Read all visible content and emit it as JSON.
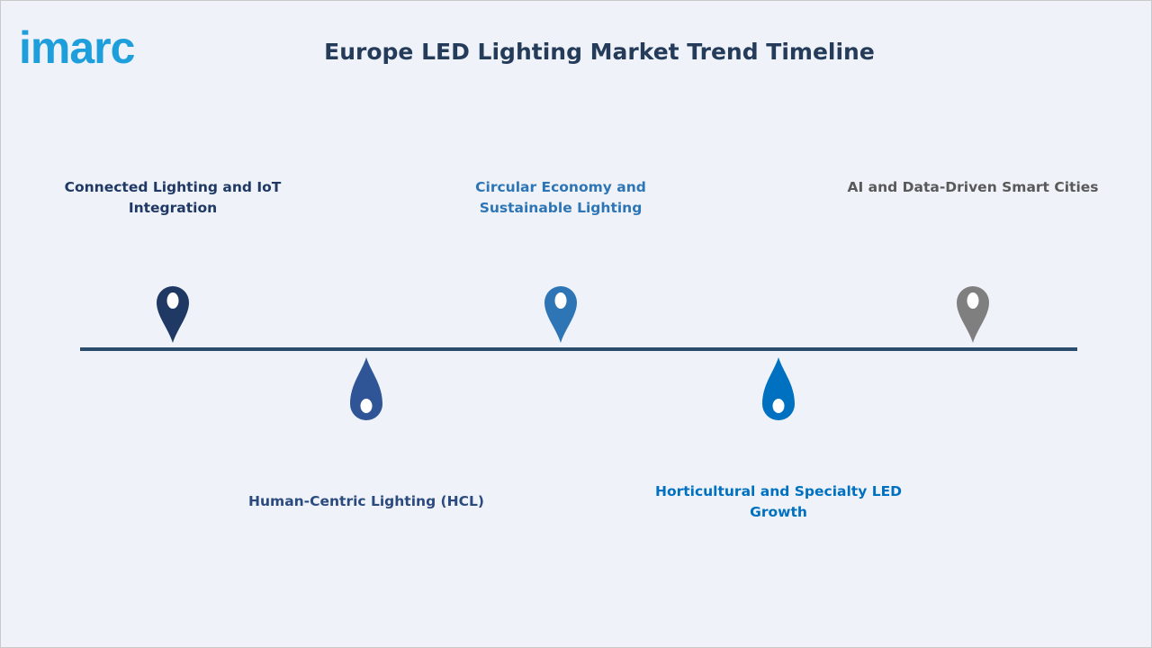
{
  "header": {
    "logo": "imarc",
    "title": "Europe LED Lighting Market Trend Timeline"
  },
  "milestones": [
    {
      "label": "Connected Lighting and IoT Integration"
    },
    {
      "label": "Human-Centric Lighting (HCL)"
    },
    {
      "label": "Circular Economy and Sustainable Lighting"
    },
    {
      "label": "Horticultural and Specialty LED Growth"
    },
    {
      "label": "AI and Data-Driven Smart Cities"
    }
  ]
}
